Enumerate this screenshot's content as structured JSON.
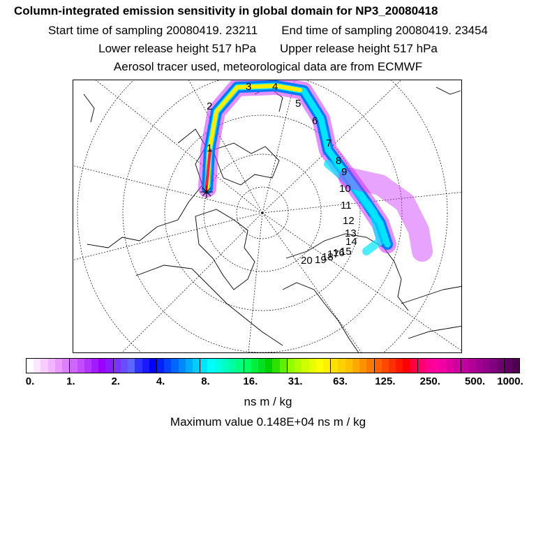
{
  "title": "Column-integrated emission sensitivity in global domain for NP3_20080418",
  "sampling": {
    "start": "Start time of sampling 20080419. 23211",
    "end": "End time of sampling 20080419. 23454"
  },
  "release": {
    "lower": "Lower release height  517 hPa",
    "upper": "Upper release height  517 hPa"
  },
  "tracer_info": "Aerosol tracer used, meteorological data are from ECMWF",
  "trajectory_labels": [
    "1",
    "2",
    "3",
    "4",
    "5",
    "6",
    "7",
    "8",
    "9",
    "10",
    "11",
    "12",
    "13",
    "14",
    "15",
    "16",
    "17",
    "18",
    "19",
    "20"
  ],
  "colorbar": {
    "tick_labels": [
      "0.",
      "1.",
      "2.",
      "4.",
      "8.",
      "16.",
      "31.",
      "63.",
      "125.",
      "250.",
      "500.",
      "1000."
    ],
    "colors": [
      "#ffffff",
      "#fde6ff",
      "#f9ccff",
      "#f2b3ff",
      "#e999ff",
      "#dc80ff",
      "#cf66ff",
      "#c24dff",
      "#b333ff",
      "#a31aff",
      "#9900ff",
      "#8a1aff",
      "#7a33ff",
      "#6a4dff",
      "#5a66ff",
      "#3333ff",
      "#1a1aff",
      "#0000ff",
      "#0022ff",
      "#0044ff",
      "#0066ff",
      "#0088ff",
      "#00aaff",
      "#00ccff",
      "#00e5ff",
      "#00ffff",
      "#00ffe0",
      "#00ffc0",
      "#00ffa0",
      "#00ff80",
      "#00ff60",
      "#00f040",
      "#00e020",
      "#00d000",
      "#30e000",
      "#60f000",
      "#90ff00",
      "#b0ff00",
      "#d0ff00",
      "#e8ff00",
      "#ffff00",
      "#fff000",
      "#ffe000",
      "#ffd000",
      "#ffc000",
      "#ffa800",
      "#ff9000",
      "#ff7800",
      "#ff6000",
      "#ff4800",
      "#ff3000",
      "#ff1800",
      "#ff0000",
      "#ff0040",
      "#ff0070",
      "#ff0090",
      "#ff00a0",
      "#f000a0",
      "#e000a0",
      "#d000a0",
      "#c000a0",
      "#b00098",
      "#a00090",
      "#900088",
      "#800080",
      "#700070",
      "#600060",
      "#500050"
    ]
  },
  "unit": "ns m / kg",
  "maximum": "Maximum value  0.148E+04 ns m / kg",
  "colors": {
    "plume_outer": "#cc33ff",
    "plume_mid": "#0077ff",
    "plume_core": "#00e5ff",
    "plume_hot": "#ffee00",
    "plume_peak": "#ff1a4a"
  }
}
